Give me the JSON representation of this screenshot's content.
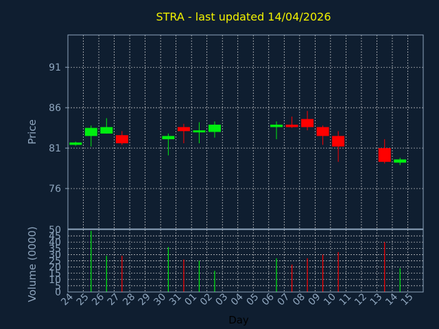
{
  "title": "STRA - last updated 14/04/2026",
  "colors": {
    "background": "#0f1e30",
    "title": "#f2f200",
    "axis_text": "#8fa6be",
    "frame": "#8fa6be",
    "grid": "#d8d8d8",
    "up": "#00ee10",
    "down": "#ff0000",
    "x_label": "#000000"
  },
  "chart_data": [
    {
      "type": "candlestick",
      "title": "STRA - last updated 14/04/2026",
      "ylabel": "Price",
      "ylim": [
        71,
        95
      ],
      "yticks": [
        76,
        81,
        86,
        91
      ],
      "grid": true,
      "categories": [
        "24",
        "25",
        "26",
        "27",
        "28",
        "29",
        "30",
        "31",
        "01",
        "02",
        "03",
        "04",
        "05",
        "06",
        "07",
        "08",
        "09",
        "10",
        "11",
        "12",
        "13",
        "14",
        "15"
      ],
      "candles": [
        {
          "x": "24",
          "open": 81.4,
          "high": 81.8,
          "low": 81.3,
          "close": 81.7
        },
        {
          "x": "25",
          "open": 82.5,
          "high": 83.8,
          "low": 81.2,
          "close": 83.5
        },
        {
          "x": "26",
          "open": 82.8,
          "high": 84.7,
          "low": 82.8,
          "close": 83.6
        },
        {
          "x": "27",
          "open": 82.6,
          "high": 83.1,
          "low": 81.4,
          "close": 81.6
        },
        {
          "x": "30",
          "open": 82.1,
          "high": 82.8,
          "low": 80.1,
          "close": 82.5
        },
        {
          "x": "31",
          "open": 83.6,
          "high": 84.0,
          "low": 81.6,
          "close": 83.1
        },
        {
          "x": "01",
          "open": 83.0,
          "high": 84.2,
          "low": 81.6,
          "close": 83.2
        },
        {
          "x": "02",
          "open": 83.0,
          "high": 84.3,
          "low": 82.3,
          "close": 83.9
        },
        {
          "x": "06",
          "open": 83.6,
          "high": 84.3,
          "low": 82.1,
          "close": 83.9
        },
        {
          "x": "07",
          "open": 83.9,
          "high": 84.9,
          "low": 83.5,
          "close": 83.6
        },
        {
          "x": "08",
          "open": 84.6,
          "high": 85.6,
          "low": 83.2,
          "close": 83.6
        },
        {
          "x": "09",
          "open": 83.6,
          "high": 83.8,
          "low": 81.4,
          "close": 82.5
        },
        {
          "x": "10",
          "open": 82.5,
          "high": 83.1,
          "low": 79.3,
          "close": 81.2
        },
        {
          "x": "13",
          "open": 81.0,
          "high": 82.1,
          "low": 79.1,
          "close": 79.3
        },
        {
          "x": "14",
          "open": 79.2,
          "high": 79.8,
          "low": 78.9,
          "close": 79.6
        }
      ]
    },
    {
      "type": "bar",
      "xlabel": "Day",
      "ylabel": "Volume (0000)",
      "ylim": [
        0,
        50
      ],
      "yticks": [
        0,
        5,
        10,
        15,
        20,
        25,
        30,
        35,
        40,
        45,
        50
      ],
      "grid": true,
      "categories": [
        "24",
        "25",
        "26",
        "27",
        "28",
        "29",
        "30",
        "31",
        "01",
        "02",
        "03",
        "04",
        "05",
        "06",
        "07",
        "08",
        "09",
        "10",
        "11",
        "12",
        "13",
        "14",
        "15"
      ],
      "bars": [
        {
          "x": "25",
          "value": 49,
          "direction": "up"
        },
        {
          "x": "26",
          "value": 29,
          "direction": "up"
        },
        {
          "x": "27",
          "value": 29,
          "direction": "down"
        },
        {
          "x": "30",
          "value": 36,
          "direction": "up"
        },
        {
          "x": "31",
          "value": 26,
          "direction": "down"
        },
        {
          "x": "01",
          "value": 25,
          "direction": "up"
        },
        {
          "x": "02",
          "value": 17,
          "direction": "up"
        },
        {
          "x": "06",
          "value": 27,
          "direction": "up"
        },
        {
          "x": "07",
          "value": 22,
          "direction": "down"
        },
        {
          "x": "08",
          "value": 27,
          "direction": "down"
        },
        {
          "x": "09",
          "value": 30,
          "direction": "down"
        },
        {
          "x": "10",
          "value": 32,
          "direction": "down"
        },
        {
          "x": "13",
          "value": 40,
          "direction": "down"
        },
        {
          "x": "14",
          "value": 19,
          "direction": "up"
        }
      ]
    }
  ]
}
